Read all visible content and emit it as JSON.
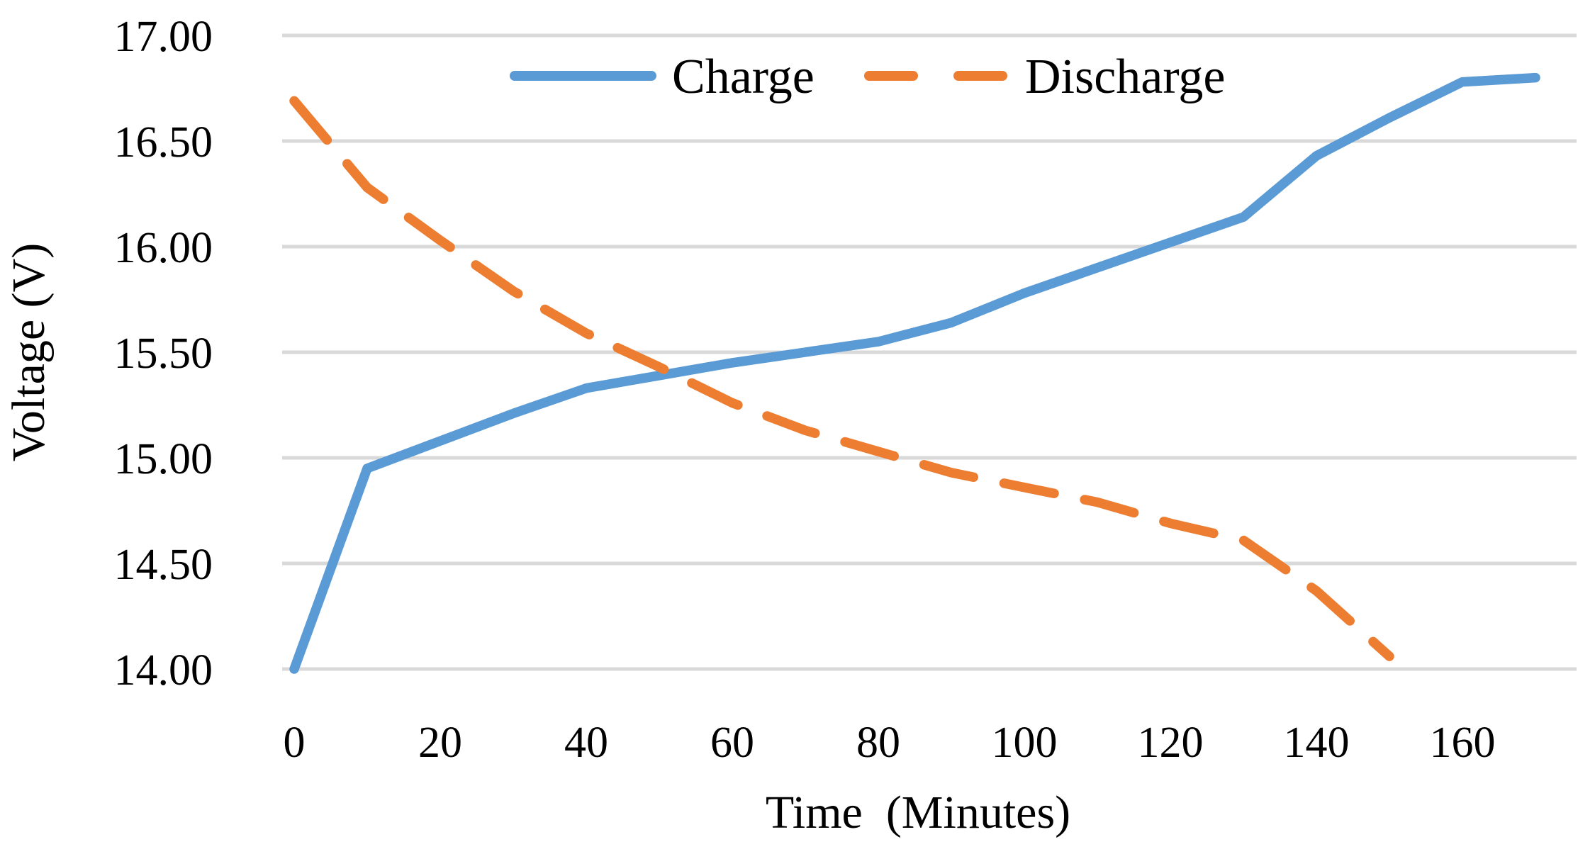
{
  "chart_data": {
    "type": "line",
    "title": "",
    "xlabel": "Time  (Minutes)",
    "ylabel": "Voltage (V)",
    "xlim": [
      0,
      176
    ],
    "ylim": [
      14.0,
      17.0
    ],
    "grid": true,
    "gridline_step": 0.5,
    "legend_position": "top-center",
    "x_ticks": [
      0,
      20,
      40,
      60,
      80,
      100,
      120,
      140,
      160
    ],
    "y_ticks": [
      {
        "value": 17.0,
        "label": "17.00"
      },
      {
        "value": 16.5,
        "label": "16.50"
      },
      {
        "value": 16.0,
        "label": "16.00"
      },
      {
        "value": 15.5,
        "label": "15.50"
      },
      {
        "value": 15.0,
        "label": "15.00"
      },
      {
        "value": 14.5,
        "label": "14.50"
      },
      {
        "value": 14.0,
        "label": "14.00"
      }
    ],
    "series": [
      {
        "name": "Charge",
        "color": "#5B9BD5",
        "style": "solid",
        "x": [
          0,
          10,
          20,
          30,
          40,
          50,
          60,
          70,
          80,
          90,
          100,
          110,
          120,
          130,
          140,
          150,
          160,
          170
        ],
        "y": [
          14.0,
          14.95,
          15.08,
          15.21,
          15.33,
          15.39,
          15.45,
          15.5,
          15.55,
          15.64,
          15.78,
          15.9,
          16.02,
          16.14,
          16.43,
          16.61,
          16.78,
          16.8
        ]
      },
      {
        "name": "Discharge",
        "color": "#ED7D31",
        "style": "dashed",
        "x": [
          0,
          10,
          20,
          30,
          40,
          50,
          60,
          70,
          80,
          90,
          100,
          110,
          120,
          130,
          140,
          150
        ],
        "y": [
          16.69,
          16.28,
          16.03,
          15.79,
          15.59,
          15.43,
          15.26,
          15.13,
          15.03,
          14.93,
          14.86,
          14.79,
          14.69,
          14.61,
          14.37,
          14.06
        ]
      }
    ]
  },
  "colors": {
    "background": "#FFFFFF",
    "gridline": "#D9D9D9",
    "text": "#000000",
    "charge_line": "#5B9BD5",
    "discharge_line": "#ED7D31"
  }
}
